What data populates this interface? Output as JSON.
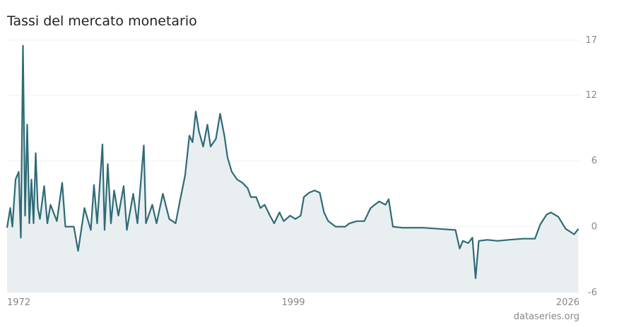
{
  "chart_data": {
    "type": "line",
    "title": "Tassi del mercato monetario",
    "source": "dataseries.org",
    "x": [
      1972.0,
      1972.3,
      1972.5,
      1972.8,
      1973.1,
      1973.3,
      1973.5,
      1973.7,
      1973.9,
      1974.1,
      1974.3,
      1974.5,
      1974.7,
      1974.9,
      1975.1,
      1975.5,
      1975.8,
      1976.1,
      1976.7,
      1977.2,
      1977.5,
      1978.3,
      1978.7,
      1979.0,
      1979.3,
      1979.9,
      1980.2,
      1980.5,
      1981.0,
      1981.2,
      1981.5,
      1981.8,
      1982.1,
      1982.5,
      1983.0,
      1983.3,
      1983.9,
      1984.3,
      1984.9,
      1985.1,
      1985.7,
      1986.1,
      1986.7,
      1987.3,
      1987.9,
      1988.3,
      1988.8,
      1989.2,
      1989.5,
      1989.8,
      1990.1,
      1990.5,
      1990.9,
      1991.2,
      1991.7,
      1992.1,
      1992.5,
      1992.8,
      1993.2,
      1993.7,
      1994.2,
      1994.7,
      1995.0,
      1995.5,
      1995.9,
      1996.3,
      1996.8,
      1997.2,
      1997.7,
      1998.1,
      1998.7,
      1999.2,
      1999.7,
      2000.0,
      2000.5,
      2001.0,
      2001.5,
      2001.9,
      2002.3,
      2003.0,
      2003.9,
      2004.3,
      2005.0,
      2005.7,
      2006.3,
      2007.1,
      2007.7,
      2008.0,
      2008.4,
      2009.3,
      2011.3,
      2012.7,
      2014.3,
      2014.7,
      2015.0,
      2015.5,
      2015.9,
      2016.2,
      2016.5,
      2017.3,
      2018.3,
      2019.3,
      2020.7,
      2021.8,
      2022.3,
      2022.9,
      2023.3,
      2024.0,
      2024.7,
      2025.5,
      2025.9
    ],
    "series": [
      {
        "name": "Tassi del mercato monetario",
        "color": "#2e6b77",
        "values": [
          -0.1,
          1.7,
          0,
          4.3,
          5,
          -1,
          16.5,
          1,
          9.3,
          0.3,
          4.3,
          0.3,
          6.7,
          1.7,
          0.7,
          3.7,
          0.3,
          2,
          0.5,
          4,
          0,
          0,
          -2.2,
          -0.3,
          1.7,
          -0.3,
          3.8,
          0.3,
          7.5,
          -0.3,
          5.7,
          0.3,
          3.3,
          1,
          3.7,
          -0.3,
          3,
          0.3,
          7.4,
          0.3,
          2,
          0.3,
          3,
          0.7,
          0.3,
          2.3,
          4.7,
          8.3,
          7.7,
          10.5,
          8.7,
          7.3,
          9.3,
          7.3,
          8,
          10.3,
          8.3,
          6.3,
          5,
          4.3,
          4,
          3.5,
          2.7,
          2.7,
          1.7,
          2,
          1,
          0.3,
          1.3,
          0.5,
          1,
          0.7,
          1,
          2.7,
          3.1,
          3.3,
          3.1,
          1.3,
          0.5,
          0,
          0,
          0.3,
          0.5,
          0.5,
          1.7,
          2.3,
          2,
          2.5,
          0,
          -0.1,
          -0.1,
          -0.2,
          -0.3,
          -2,
          -1.3,
          -1.5,
          -1,
          -4.7,
          -1.3,
          -1.2,
          -1.3,
          -1.2,
          -1.1,
          -1.1,
          0.2,
          1.1,
          1.3,
          0.9,
          -0.2,
          -0.7,
          -0.2
        ]
      }
    ],
    "xlim": [
      1972,
      2026
    ],
    "xticks": [
      1972,
      1999,
      2026
    ],
    "ylim": [
      -6,
      17
    ],
    "yticks": [
      -6,
      0,
      6,
      12,
      17
    ],
    "grid": true,
    "fill_color": "#e9eef0"
  }
}
